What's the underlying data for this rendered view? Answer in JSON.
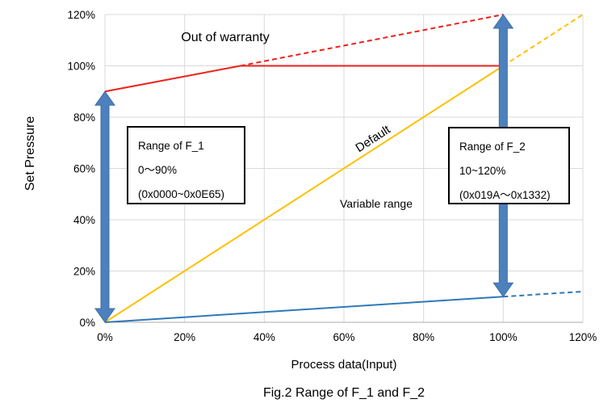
{
  "figure": {
    "caption": "Fig.2 Range of F_1 and F_2"
  },
  "chart_data": {
    "type": "line",
    "title": "",
    "xlabel": "Process data(Input)",
    "ylabel": "Set Pressure",
    "xlim": [
      0,
      120
    ],
    "ylim": [
      0,
      120
    ],
    "grid": true,
    "legend": "none",
    "x_tick_values": [
      0,
      20,
      40,
      60,
      80,
      100,
      120
    ],
    "x_tick_labels": [
      "0%",
      "20%",
      "40%",
      "60%",
      "80%",
      "100%",
      "120%"
    ],
    "y_tick_values": [
      0,
      20,
      40,
      60,
      80,
      100,
      120
    ],
    "y_tick_labels": [
      "0%",
      "20%",
      "40%",
      "60%",
      "80%",
      "100%",
      "120%"
    ],
    "series": [
      {
        "name": "out-of-warranty-upper-limit",
        "color": "#EE2019",
        "style": "solid",
        "width": 2,
        "points": [
          [
            0,
            90
          ],
          [
            34,
            100
          ],
          [
            100,
            100
          ]
        ]
      },
      {
        "name": "out-of-warranty-extension",
        "color": "#EE2019",
        "style": "dashed",
        "width": 2,
        "points": [
          [
            34,
            100
          ],
          [
            100,
            120
          ]
        ]
      },
      {
        "name": "default-line",
        "color": "#FFC000",
        "style": "solid",
        "width": 2,
        "points": [
          [
            0,
            0
          ],
          [
            100,
            100
          ]
        ]
      },
      {
        "name": "default-extension",
        "color": "#FFC000",
        "style": "dashed",
        "width": 2,
        "points": [
          [
            100,
            100
          ],
          [
            120,
            120
          ]
        ]
      },
      {
        "name": "lower-limit-line",
        "color": "#2E79B9",
        "style": "solid",
        "width": 2,
        "points": [
          [
            0,
            0
          ],
          [
            100,
            10
          ]
        ]
      },
      {
        "name": "lower-limit-extension",
        "color": "#2E79B9",
        "style": "dashed",
        "width": 2,
        "points": [
          [
            100,
            10
          ],
          [
            120,
            12
          ]
        ]
      }
    ],
    "range_arrows": [
      {
        "name": "range-f1-arrow",
        "x": 0,
        "from": 0,
        "to": 90,
        "fill": "#4C81BD",
        "edge": "#3E6DA5"
      },
      {
        "name": "range-f2-arrow",
        "x": 100,
        "from": 10,
        "to": 120,
        "fill": "#4C81BD",
        "edge": "#3E6DA5"
      }
    ],
    "colors": {
      "grid": "#D9D9D9",
      "axis": "#ABABAB",
      "text": "#000000"
    }
  },
  "annotations": {
    "out_of_warranty": "Out of warranty",
    "default_label": "Default",
    "variable_range": "Variable range"
  },
  "boxes": {
    "f1": {
      "title": "Range of F_1",
      "range": "0〜90%",
      "hex": "(0x0000~0x0E65)"
    },
    "f2": {
      "title": "Range of F_2",
      "range": "10~120%",
      "hex": "(0x019A〜0x1332)"
    }
  }
}
